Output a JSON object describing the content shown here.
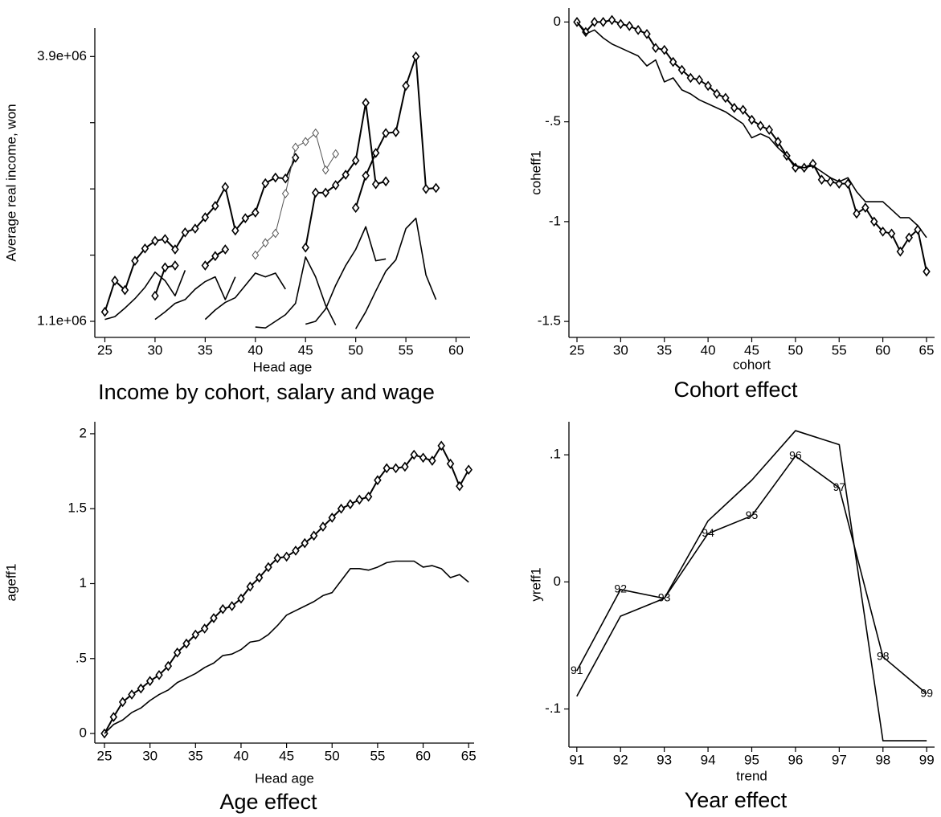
{
  "chart_data": [
    {
      "type": "line",
      "title": "Income by cohort, salary and wage",
      "x_label": "Head age",
      "y_label": "Average real income, won",
      "xlim": [
        24,
        61.4
      ],
      "ylim": [
        930000,
        4200000
      ],
      "xticks": [
        25,
        30,
        35,
        40,
        45,
        50,
        55,
        60
      ],
      "yticks": [
        {
          "value": 1100000,
          "label": "1.1e+06"
        },
        {
          "value": 3900000,
          "label": "3.9e+06"
        }
      ],
      "yminorticks": [
        1800000,
        2500000,
        3200000
      ],
      "series": [
        {
          "color": "#000000",
          "marker": true,
          "width": 2,
          "x": [
            25,
            26,
            27,
            28,
            29,
            30,
            31,
            32,
            33,
            34,
            35,
            36,
            37,
            38,
            39,
            40,
            41,
            42,
            43,
            44
          ],
          "values": [
            1200000,
            1530000,
            1430000,
            1740000,
            1870000,
            1950000,
            1970000,
            1860000,
            2040000,
            2080000,
            2200000,
            2320000,
            2520000,
            2060000,
            2190000,
            2250000,
            2560000,
            2620000,
            2610000,
            2830000
          ]
        },
        {
          "color": "#000000",
          "marker": true,
          "width": 2,
          "x": [
            30,
            31,
            32
          ],
          "values": [
            1370000,
            1670000,
            1690000
          ]
        },
        {
          "color": "#000000",
          "marker": true,
          "width": 2,
          "x": [
            35,
            36,
            37
          ],
          "values": [
            1690000,
            1790000,
            1860000
          ]
        },
        {
          "color": "#555555",
          "marker": true,
          "width": 1,
          "x": [
            40,
            41,
            42,
            43,
            44,
            45,
            46,
            47,
            48
          ],
          "values": [
            1800000,
            1930000,
            2030000,
            2450000,
            2940000,
            3000000,
            3090000,
            2700000,
            2870000
          ]
        },
        {
          "color": "#000000",
          "marker": true,
          "width": 2,
          "x": [
            45,
            46,
            47,
            48,
            49,
            50,
            51,
            52,
            53
          ],
          "values": [
            1880000,
            2460000,
            2460000,
            2540000,
            2650000,
            2800000,
            3410000,
            2550000,
            2580000
          ]
        },
        {
          "color": "#000000",
          "marker": true,
          "width": 2,
          "x": [
            50,
            51,
            52,
            53,
            54,
            55,
            56,
            57,
            58
          ],
          "values": [
            2300000,
            2640000,
            2880000,
            3090000,
            3100000,
            3590000,
            3900000,
            2500000,
            2510000
          ]
        },
        {
          "color": "#000000",
          "marker": false,
          "width": 1.6,
          "x": [
            25,
            26,
            27,
            28,
            29,
            30,
            31,
            32,
            33
          ],
          "values": [
            1120000,
            1150000,
            1240000,
            1340000,
            1460000,
            1620000,
            1530000,
            1370000,
            1640000
          ]
        },
        {
          "color": "#000000",
          "marker": false,
          "width": 1.6,
          "x": [
            30,
            31,
            32,
            33,
            34,
            35,
            36,
            37,
            38
          ],
          "values": [
            1120000,
            1200000,
            1290000,
            1330000,
            1440000,
            1520000,
            1570000,
            1330000,
            1570000
          ]
        },
        {
          "color": "#000000",
          "marker": false,
          "width": 1.6,
          "x": [
            35,
            36,
            37,
            38,
            39,
            40,
            41,
            42,
            43
          ],
          "values": [
            1120000,
            1220000,
            1300000,
            1350000,
            1480000,
            1610000,
            1570000,
            1610000,
            1440000
          ]
        },
        {
          "color": "#000000",
          "marker": false,
          "width": 1.6,
          "x": [
            40,
            41,
            42,
            43,
            44,
            45,
            46,
            47,
            48
          ],
          "values": [
            1040000,
            1030000,
            1100000,
            1170000,
            1290000,
            1780000,
            1570000,
            1270000,
            1060000
          ]
        },
        {
          "color": "#000000",
          "marker": false,
          "width": 1.6,
          "x": [
            45,
            46,
            47,
            48,
            49,
            50,
            51,
            52,
            53
          ],
          "values": [
            1070000,
            1100000,
            1230000,
            1480000,
            1690000,
            1860000,
            2100000,
            1740000,
            1760000
          ]
        },
        {
          "color": "#000000",
          "marker": false,
          "width": 1.6,
          "x": [
            50,
            51,
            52,
            53,
            54,
            55,
            56,
            57,
            58
          ],
          "values": [
            1020000,
            1200000,
            1420000,
            1630000,
            1750000,
            2080000,
            2190000,
            1590000,
            1330000
          ]
        }
      ]
    },
    {
      "type": "line",
      "title": "Cohort effect",
      "x_label": "cohort",
      "y_label": "coheff1",
      "xlim": [
        24.08,
        65.92
      ],
      "ylim": [
        -1.58,
        0.07
      ],
      "xticks": [
        25,
        30,
        35,
        40,
        45,
        50,
        55,
        60,
        65
      ],
      "yticks": [
        0,
        {
          "value": -0.5,
          "label": "-.5"
        },
        -1,
        -1.5
      ],
      "series": [
        {
          "color": "#000000",
          "marker": true,
          "width": 2,
          "x": [
            25,
            26,
            27,
            28,
            29,
            30,
            31,
            32,
            33,
            34,
            35,
            36,
            37,
            38,
            39,
            40,
            41,
            42,
            43,
            44,
            45,
            46,
            47,
            48,
            49,
            50,
            51,
            52,
            53,
            54,
            55,
            56,
            57,
            58,
            59,
            60,
            61,
            62,
            63,
            64,
            65
          ],
          "values": [
            0,
            -0.05,
            0,
            0,
            0.01,
            -0.01,
            -0.02,
            -0.04,
            -0.06,
            -0.13,
            -0.14,
            -0.2,
            -0.24,
            -0.28,
            -0.29,
            -0.32,
            -0.36,
            -0.38,
            -0.43,
            -0.44,
            -0.49,
            -0.52,
            -0.54,
            -0.6,
            -0.67,
            -0.73,
            -0.73,
            -0.71,
            -0.79,
            -0.8,
            -0.81,
            -0.81,
            -0.96,
            -0.93,
            -1.0,
            -1.05,
            -1.06,
            -1.15,
            -1.08,
            -1.04,
            -1.25
          ]
        },
        {
          "color": "#000000",
          "marker": false,
          "width": 1.6,
          "x": [
            25,
            26,
            27,
            28,
            29,
            30,
            31,
            32,
            33,
            34,
            35,
            36,
            37,
            38,
            39,
            40,
            41,
            42,
            43,
            44,
            45,
            46,
            47,
            48,
            49,
            50,
            51,
            52,
            53,
            54,
            55,
            56,
            57,
            58,
            59,
            60,
            61,
            62,
            63,
            64,
            65
          ],
          "values": [
            0,
            -0.06,
            -0.04,
            -0.08,
            -0.11,
            -0.13,
            -0.15,
            -0.17,
            -0.22,
            -0.19,
            -0.3,
            -0.28,
            -0.34,
            -0.36,
            -0.39,
            -0.41,
            -0.43,
            -0.45,
            -0.48,
            -0.51,
            -0.58,
            -0.56,
            -0.58,
            -0.63,
            -0.67,
            -0.72,
            -0.73,
            -0.72,
            -0.75,
            -0.78,
            -0.8,
            -0.78,
            -0.85,
            -0.9,
            -0.9,
            -0.9,
            -0.94,
            -0.98,
            -0.98,
            -1.02,
            -1.08
          ]
        }
      ]
    },
    {
      "type": "line",
      "title": "Age effect",
      "x_label": "Head age",
      "y_label": "ageff1",
      "xlim": [
        23.94,
        65.6
      ],
      "ylim": [
        -0.064,
        2.08
      ],
      "xticks": [
        25,
        30,
        35,
        40,
        45,
        50,
        55,
        60,
        65
      ],
      "yticks": [
        0,
        {
          "value": 0.5,
          "label": ".5"
        },
        1,
        1.5,
        2
      ],
      "series": [
        {
          "color": "#000000",
          "marker": true,
          "width": 2,
          "x": [
            25,
            26,
            27,
            28,
            29,
            30,
            31,
            32,
            33,
            34,
            35,
            36,
            37,
            38,
            39,
            40,
            41,
            42,
            43,
            44,
            45,
            46,
            47,
            48,
            49,
            50,
            51,
            52,
            53,
            54,
            55,
            56,
            57,
            58,
            59,
            60,
            61,
            62,
            63,
            64,
            65
          ],
          "values": [
            0,
            0.11,
            0.21,
            0.26,
            0.3,
            0.35,
            0.39,
            0.45,
            0.54,
            0.6,
            0.66,
            0.7,
            0.77,
            0.83,
            0.85,
            0.9,
            0.98,
            1.04,
            1.11,
            1.17,
            1.18,
            1.22,
            1.27,
            1.32,
            1.38,
            1.44,
            1.5,
            1.53,
            1.56,
            1.58,
            1.69,
            1.77,
            1.77,
            1.78,
            1.86,
            1.84,
            1.82,
            1.92,
            1.8,
            1.65,
            1.76
          ]
        },
        {
          "color": "#000000",
          "marker": false,
          "width": 1.6,
          "x": [
            25,
            26,
            27,
            28,
            29,
            30,
            31,
            32,
            33,
            34,
            35,
            36,
            37,
            38,
            39,
            40,
            41,
            42,
            43,
            44,
            45,
            46,
            47,
            48,
            49,
            50,
            51,
            52,
            53,
            54,
            55,
            56,
            57,
            58,
            59,
            60,
            61,
            62,
            63,
            64,
            65
          ],
          "values": [
            0,
            0.06,
            0.09,
            0.14,
            0.17,
            0.22,
            0.26,
            0.29,
            0.34,
            0.37,
            0.4,
            0.44,
            0.47,
            0.52,
            0.53,
            0.56,
            0.61,
            0.62,
            0.66,
            0.72,
            0.79,
            0.82,
            0.85,
            0.88,
            0.92,
            0.94,
            1.02,
            1.1,
            1.1,
            1.09,
            1.11,
            1.14,
            1.15,
            1.15,
            1.15,
            1.11,
            1.12,
            1.1,
            1.04,
            1.06,
            1.01
          ]
        }
      ]
    },
    {
      "type": "line",
      "title": "Year effect",
      "x_label": "trend",
      "y_label": "yreff1",
      "xlim": [
        90.82,
        99.18
      ],
      "ylim": [
        -0.13,
        0.126
      ],
      "xticks": [
        91,
        92,
        93,
        94,
        95,
        96,
        97,
        98,
        99
      ],
      "yticks": [
        {
          "value": 0.1,
          "label": ".1"
        },
        0,
        {
          "value": -0.1,
          "label": "-.1"
        }
      ],
      "series": [
        {
          "color": "#000000",
          "marker": "label",
          "width": 1.6,
          "x": [
            91,
            92,
            93,
            94,
            95,
            96,
            97,
            98,
            99
          ],
          "values": [
            -0.07,
            -0.006,
            -0.013,
            0.038,
            0.052,
            0.099,
            0.074,
            -0.059,
            -0.088
          ]
        },
        {
          "color": "#000000",
          "marker": false,
          "width": 1.6,
          "x": [
            91,
            92,
            93,
            94,
            95,
            96,
            97,
            98,
            99
          ],
          "values": [
            -0.09,
            -0.027,
            -0.013,
            0.048,
            0.08,
            0.119,
            0.108,
            -0.125,
            -0.125
          ]
        }
      ]
    }
  ]
}
